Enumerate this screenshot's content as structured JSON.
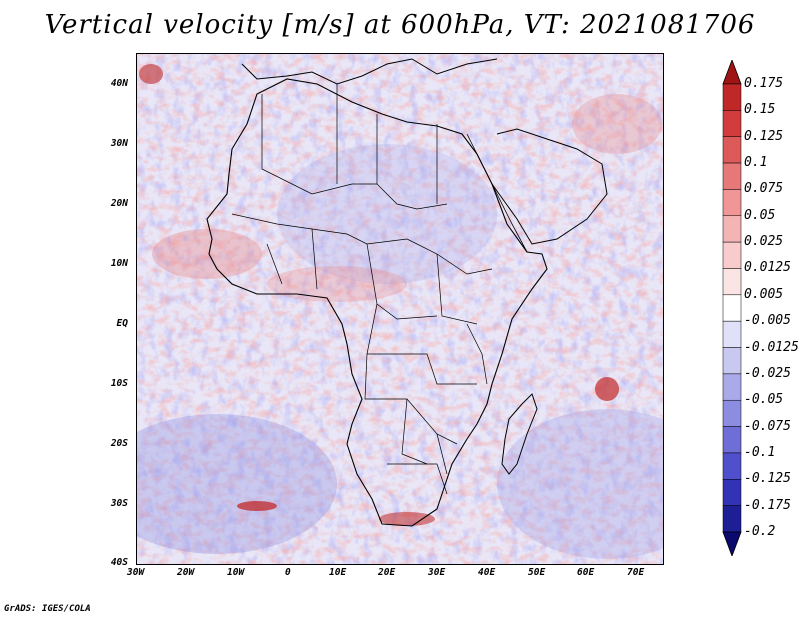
{
  "title": "Vertical velocity [m/s] at 600hPa, VT: 2021081706",
  "footer": "GrADS: IGES/COLA",
  "map": {
    "variable": "Vertical velocity",
    "units": "m/s",
    "level": "600hPa",
    "valid_time": "2021081706",
    "region": "Africa",
    "lon_range": [
      -30,
      75
    ],
    "lat_range": [
      -40,
      45
    ],
    "lat_labels": [
      "40N",
      "30N",
      "20N",
      "10N",
      "EQ",
      "10S",
      "20S",
      "30S",
      "40S"
    ],
    "lon_labels": [
      "30W",
      "20W",
      "10W",
      "0",
      "10E",
      "20E",
      "30E",
      "40E",
      "50E",
      "60E",
      "70E"
    ]
  },
  "colorbar": {
    "labels": [
      "0.175",
      "0.15",
      "0.125",
      "0.1",
      "0.075",
      "0.05",
      "0.025",
      "0.0125",
      "0.005",
      "-0.005",
      "-0.0125",
      "-0.025",
      "-0.05",
      "-0.075",
      "-0.1",
      "-0.125",
      "-0.175",
      "-0.2"
    ],
    "colors": [
      "#a01414",
      "#c02828",
      "#d23c3c",
      "#dc5a5a",
      "#e67878",
      "#f09696",
      "#f5b4b4",
      "#f8cccc",
      "#fbe4e4",
      "#ffffff",
      "#e0e0f8",
      "#c8c8f0",
      "#aaaaea",
      "#8c8ce0",
      "#6e6ed6",
      "#5050cc",
      "#3232b4",
      "#1e1e96",
      "#0a0a6e"
    ]
  }
}
